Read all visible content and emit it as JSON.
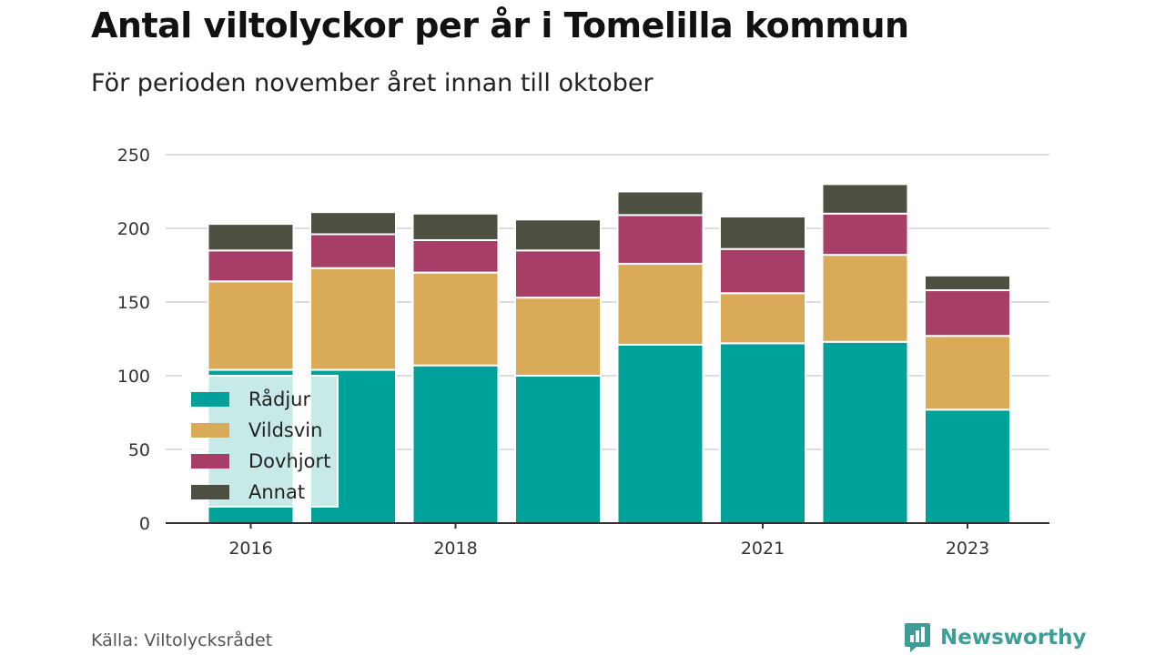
{
  "title": "Antal viltolyckor per år i Tomelilla kommun",
  "subtitle": "För perioden november året innan till oktober",
  "source": "Källa: Viltolycksrådet",
  "brand": "Newsworthy",
  "chart_data": {
    "type": "bar",
    "stacked": true,
    "categories": [
      "2016",
      "2017",
      "2018",
      "2019",
      "2020",
      "2021",
      "2022",
      "2023"
    ],
    "x_tick_labels": [
      "2016",
      "",
      "2018",
      "",
      "",
      "2021",
      "",
      "2023"
    ],
    "y_ticks": [
      0,
      50,
      100,
      150,
      200,
      250
    ],
    "ylim": [
      0,
      250
    ],
    "grid": true,
    "legend_position": "bottom-left",
    "series": [
      {
        "name": "Rådjur",
        "color": "#00a199",
        "values": [
          104,
          104,
          107,
          100,
          121,
          122,
          123,
          77
        ]
      },
      {
        "name": "Vildsvin",
        "color": "#d9ab58",
        "values": [
          60,
          69,
          63,
          53,
          55,
          34,
          59,
          50
        ]
      },
      {
        "name": "Dovhjort",
        "color": "#a63e68",
        "values": [
          21,
          23,
          22,
          32,
          33,
          30,
          28,
          31
        ]
      },
      {
        "name": "Annat",
        "color": "#4d5040",
        "values": [
          18,
          15,
          18,
          21,
          16,
          22,
          20,
          10
        ]
      }
    ]
  }
}
